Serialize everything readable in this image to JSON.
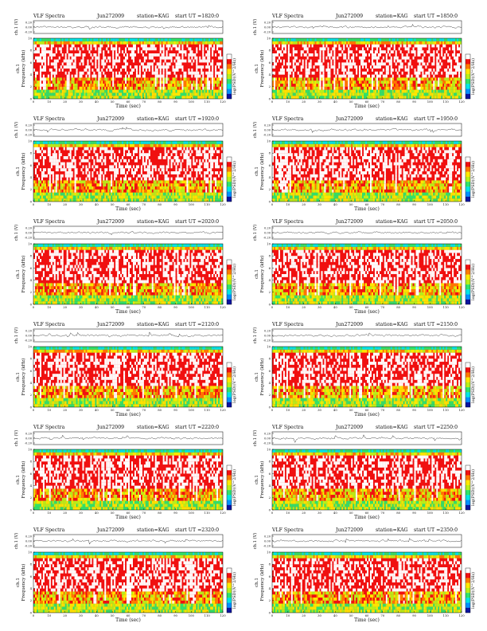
{
  "chart_data": {
    "type": "heatmap",
    "colorbar": {
      "colors": [
        "#0a14a0",
        "#0090ff",
        "#00e5e5",
        "#2fe36a",
        "#b8f01a",
        "#ffe800",
        "#ff7a00",
        "#f01010",
        "#ffffff"
      ],
      "label": "log(PSD)(V^2/Hz)"
    },
    "panels": [
      {
        "title": "VLF Spectra",
        "date": "Jun272009",
        "station": "station=KAG",
        "start_label": "start UT =1820:0",
        "channel_label": "ch.1 (V)",
        "freq_label": "Frequency (kHz)",
        "xlabel": "Time (sec)",
        "xlim": [
          0,
          120
        ],
        "ylim": [
          0,
          10
        ],
        "x_ticks": [
          "0",
          "10",
          "20",
          "30",
          "40",
          "50",
          "60",
          "70",
          "80",
          "90",
          "100",
          "110",
          "120"
        ],
        "y_ticks": [
          "0",
          "2",
          "4",
          "6",
          "8",
          "10"
        ],
        "ts_ticks": [
          "0.20",
          "0.00",
          "-0.20"
        ]
      },
      {
        "title": "VLF Spectra",
        "date": "Jun272009",
        "station": "station=KAG",
        "start_label": "start UT =1850:0",
        "channel_label": "ch.1 (V)",
        "freq_label": "Frequency (kHz)",
        "xlabel": "Time (sec)",
        "xlim": [
          0,
          120
        ],
        "ylim": [
          0,
          10
        ],
        "x_ticks": [
          "0",
          "10",
          "20",
          "30",
          "40",
          "50",
          "60",
          "70",
          "80",
          "90",
          "100",
          "110",
          "120"
        ],
        "y_ticks": [
          "0",
          "2",
          "4",
          "6",
          "8",
          "10"
        ],
        "ts_ticks": [
          "0.20",
          "0.00",
          "-0.20"
        ]
      },
      {
        "title": "VLF Spectra",
        "date": "Jun272009",
        "station": "station=KAG",
        "start_label": "start UT =1920:0",
        "channel_label": "ch.1 (V)",
        "freq_label": "Frequency (kHz)",
        "xlabel": "Time (sec)",
        "xlim": [
          0,
          120
        ],
        "ylim": [
          0,
          10
        ],
        "x_ticks": [
          "0",
          "10",
          "20",
          "30",
          "40",
          "50",
          "60",
          "70",
          "80",
          "90",
          "100",
          "110",
          "120"
        ],
        "y_ticks": [
          "0",
          "2",
          "4",
          "6",
          "8",
          "10"
        ],
        "ts_ticks": [
          "0.20",
          "0.00",
          "-0.20"
        ]
      },
      {
        "title": "VLF Spectra",
        "date": "Jun272009",
        "station": "station=KAG",
        "start_label": "start UT =1950:0",
        "channel_label": "ch.1 (V)",
        "freq_label": "Frequency (kHz)",
        "xlabel": "Time (sec)",
        "xlim": [
          0,
          120
        ],
        "ylim": [
          0,
          10
        ],
        "x_ticks": [
          "0",
          "10",
          "20",
          "30",
          "40",
          "50",
          "60",
          "70",
          "80",
          "90",
          "100",
          "110",
          "120"
        ],
        "y_ticks": [
          "0",
          "2",
          "4",
          "6",
          "8",
          "10"
        ],
        "ts_ticks": [
          "0.20",
          "0.00",
          "-0.20"
        ]
      },
      {
        "title": "VLF Spectra",
        "date": "Jun272009",
        "station": "station=KAG",
        "start_label": "start UT =2020:0",
        "channel_label": "ch.1 (V)",
        "freq_label": "Frequency (kHz)",
        "xlabel": "Time (sec)",
        "xlim": [
          0,
          120
        ],
        "ylim": [
          0,
          10
        ],
        "x_ticks": [
          "0",
          "10",
          "20",
          "30",
          "40",
          "50",
          "60",
          "70",
          "80",
          "90",
          "100",
          "110",
          "120"
        ],
        "y_ticks": [
          "0",
          "2",
          "4",
          "6",
          "8",
          "10"
        ],
        "ts_ticks": [
          "0.20",
          "0.00",
          "-0.20"
        ]
      },
      {
        "title": "VLF Spectra",
        "date": "Jun272009",
        "station": "station=KAG",
        "start_label": "start UT =2050:0",
        "channel_label": "ch.1 (V)",
        "freq_label": "Frequency (kHz)",
        "xlabel": "Time (sec)",
        "xlim": [
          0,
          120
        ],
        "ylim": [
          0,
          10
        ],
        "x_ticks": [
          "0",
          "10",
          "20",
          "30",
          "40",
          "50",
          "60",
          "70",
          "80",
          "90",
          "100",
          "110",
          "120"
        ],
        "y_ticks": [
          "0",
          "2",
          "4",
          "6",
          "8",
          "10"
        ],
        "ts_ticks": [
          "0.20",
          "0.00",
          "-0.20"
        ]
      },
      {
        "title": "VLF Spectra",
        "date": "Jun272009",
        "station": "station=KAG",
        "start_label": "start UT =2120:0",
        "channel_label": "ch.1 (V)",
        "freq_label": "Frequency (kHz)",
        "xlabel": "Time (sec)",
        "xlim": [
          0,
          120
        ],
        "ylim": [
          0,
          10
        ],
        "x_ticks": [
          "0",
          "10",
          "20",
          "30",
          "40",
          "50",
          "60",
          "70",
          "80",
          "90",
          "100",
          "110",
          "120"
        ],
        "y_ticks": [
          "0",
          "2",
          "4",
          "6",
          "8",
          "10"
        ],
        "ts_ticks": [
          "0.20",
          "0.00",
          "-0.20"
        ]
      },
      {
        "title": "VLF Spectra",
        "date": "Jun272009",
        "station": "station=KAG",
        "start_label": "start UT =2150:0",
        "channel_label": "ch.1 (V)",
        "freq_label": "Frequency (kHz)",
        "xlabel": "Time (sec)",
        "xlim": [
          0,
          120
        ],
        "ylim": [
          0,
          10
        ],
        "x_ticks": [
          "0",
          "10",
          "20",
          "30",
          "40",
          "50",
          "60",
          "70",
          "80",
          "90",
          "100",
          "110",
          "120"
        ],
        "y_ticks": [
          "0",
          "2",
          "4",
          "6",
          "8",
          "10"
        ],
        "ts_ticks": [
          "0.20",
          "0.00",
          "-0.20"
        ]
      },
      {
        "title": "VLF Spectra",
        "date": "Jun272009",
        "station": "station=KAG",
        "start_label": "start UT =2220:0",
        "channel_label": "ch.1 (V)",
        "freq_label": "Frequency (kHz)",
        "xlabel": "Time (sec)",
        "xlim": [
          0,
          120
        ],
        "ylim": [
          0,
          10
        ],
        "x_ticks": [
          "0",
          "10",
          "20",
          "30",
          "40",
          "50",
          "60",
          "70",
          "80",
          "90",
          "100",
          "110",
          "120"
        ],
        "y_ticks": [
          "0",
          "2",
          "4",
          "6",
          "8",
          "10"
        ],
        "ts_ticks": [
          "0.20",
          "0.00",
          "-0.20"
        ]
      },
      {
        "title": "VLF Spectra",
        "date": "Jun272009",
        "station": "station=KAG",
        "start_label": "start UT =2250:0",
        "channel_label": "ch.1 (V)",
        "freq_label": "Frequency (kHz)",
        "xlabel": "Time (sec)",
        "xlim": [
          0,
          120
        ],
        "ylim": [
          0,
          10
        ],
        "x_ticks": [
          "0",
          "10",
          "20",
          "30",
          "40",
          "50",
          "60",
          "70",
          "80",
          "90",
          "100",
          "110",
          "120"
        ],
        "y_ticks": [
          "0",
          "2",
          "4",
          "6",
          "8",
          "10"
        ],
        "ts_ticks": [
          "0.20",
          "0.00",
          "-0.20"
        ]
      },
      {
        "title": "VLF Spectra",
        "date": "Jun272009",
        "station": "station=KAG",
        "start_label": "start UT =2320:0",
        "channel_label": "ch.1 (V)",
        "freq_label": "Frequency (kHz)",
        "xlabel": "Time (sec)",
        "xlim": [
          0,
          120
        ],
        "ylim": [
          0,
          10
        ],
        "x_ticks": [
          "0",
          "10",
          "20",
          "30",
          "40",
          "50",
          "60",
          "70",
          "80",
          "90",
          "100",
          "110",
          "120"
        ],
        "y_ticks": [
          "0",
          "2",
          "4",
          "6",
          "8",
          "10"
        ],
        "ts_ticks": [
          "0.20",
          "0.00",
          "-0.20"
        ]
      },
      {
        "title": "VLF Spectra",
        "date": "Jun272009",
        "station": "station=KAG",
        "start_label": "start UT =2350:0",
        "channel_label": "ch.1 (V)",
        "freq_label": "Frequency (kHz)",
        "xlabel": "Time (sec)",
        "xlim": [
          0,
          120
        ],
        "ylim": [
          0,
          10
        ],
        "x_ticks": [
          "0",
          "10",
          "20",
          "30",
          "40",
          "50",
          "60",
          "70",
          "80",
          "90",
          "100",
          "110",
          "120"
        ],
        "y_ticks": [
          "0",
          "2",
          "4",
          "6",
          "8",
          "10"
        ],
        "ts_ticks": [
          "0.20",
          "0.00",
          "-0.20"
        ]
      }
    ]
  }
}
